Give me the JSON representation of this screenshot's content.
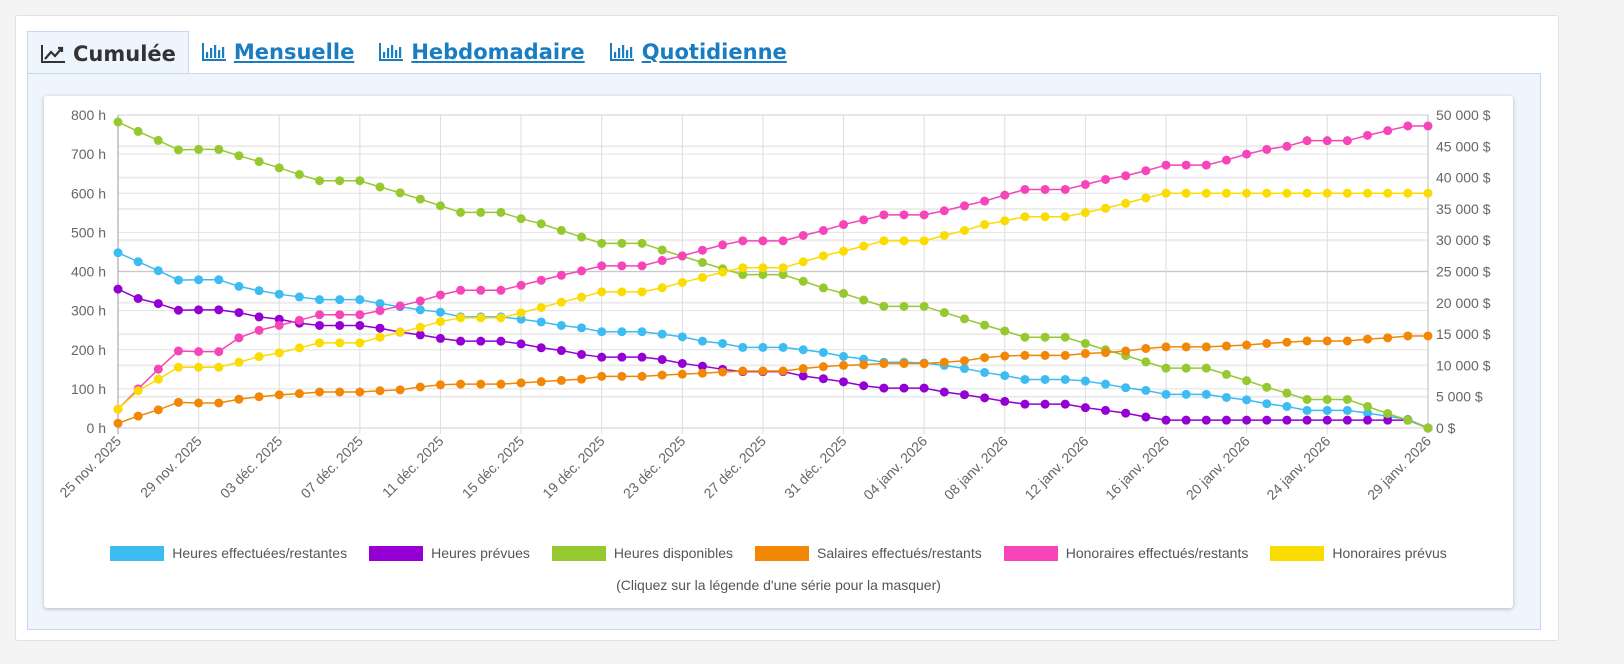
{
  "tabs": [
    {
      "label": "Cumulée",
      "icon": "line-chart-icon",
      "active": true
    },
    {
      "label": "Mensuelle",
      "icon": "bar-chart-icon",
      "active": false
    },
    {
      "label": "Hebdomadaire",
      "icon": "bar-chart-icon",
      "active": false
    },
    {
      "label": "Quotidienne",
      "icon": "bar-chart-icon",
      "active": false
    }
  ],
  "legend_hint": "(Cliquez sur la légende d'une série pour la masquer)",
  "chart_data": {
    "type": "line",
    "grid": true,
    "legend_placement": "bottom",
    "y_left": {
      "range": [
        0,
        800
      ],
      "ticks": [
        "0 h",
        "100 h",
        "200 h",
        "300 h",
        "400 h",
        "500 h",
        "600 h",
        "700 h",
        "800 h"
      ]
    },
    "y_right": {
      "range": [
        0,
        50000
      ],
      "ticks": [
        "0 $",
        "5 000 $",
        "10 000 $",
        "15 000 $",
        "20 000 $",
        "25 000 $",
        "30 000 $",
        "35 000 $",
        "40 000 $",
        "45 000 $",
        "50 000 $"
      ]
    },
    "x_tick_labels": [
      "25 nov. 2025",
      "29 nov. 2025",
      "03 déc. 2025",
      "07 déc. 2025",
      "11 déc. 2025",
      "15 déc. 2025",
      "19 déc. 2025",
      "23 déc. 2025",
      "27 déc. 2025",
      "31 déc. 2025",
      "04 janv. 2026",
      "08 janv. 2026",
      "12 janv. 2026",
      "16 janv. 2026",
      "20 janv. 2026",
      "24 janv. 2026",
      "29 janv. 2026"
    ],
    "x": [
      "25 nov. 2025",
      "26 nov. 2025",
      "27 nov. 2025",
      "28 nov. 2025",
      "29 nov. 2025",
      "30 nov. 2025",
      "01 déc. 2025",
      "02 déc. 2025",
      "03 déc. 2025",
      "04 déc. 2025",
      "05 déc. 2025",
      "06 déc. 2025",
      "07 déc. 2025",
      "08 déc. 2025",
      "09 déc. 2025",
      "10 déc. 2025",
      "11 déc. 2025",
      "12 déc. 2025",
      "13 déc. 2025",
      "14 déc. 2025",
      "15 déc. 2025",
      "16 déc. 2025",
      "17 déc. 2025",
      "18 déc. 2025",
      "19 déc. 2025",
      "20 déc. 2025",
      "21 déc. 2025",
      "22 déc. 2025",
      "23 déc. 2025",
      "24 déc. 2025",
      "25 déc. 2025",
      "26 déc. 2025",
      "27 déc. 2025",
      "28 déc. 2025",
      "29 déc. 2025",
      "30 déc. 2025",
      "31 déc. 2025",
      "01 janv. 2026",
      "02 janv. 2026",
      "03 janv. 2026",
      "04 janv. 2026",
      "05 janv. 2026",
      "06 janv. 2026",
      "07 janv. 2026",
      "08 janv. 2026",
      "09 janv. 2026",
      "10 janv. 2026",
      "11 janv. 2026",
      "12 janv. 2026",
      "13 janv. 2026",
      "14 janv. 2026",
      "15 janv. 2026",
      "16 janv. 2026",
      "17 janv. 2026",
      "18 janv. 2026",
      "19 janv. 2026",
      "20 janv. 2026",
      "21 janv. 2026",
      "22 janv. 2026",
      "23 janv. 2026",
      "24 janv. 2026",
      "25 janv. 2026",
      "26 janv. 2026",
      "27 janv. 2026",
      "28 janv. 2026",
      "29 janv. 2026"
    ],
    "series": [
      {
        "name": "Heures effectuées/restantes",
        "color": "#3dbcf2",
        "axis": "left",
        "values": [
          448,
          425,
          402,
          378,
          379,
          379,
          362,
          351,
          342,
          335,
          328,
          328,
          328,
          318,
          310,
          302,
          296,
          284,
          284,
          284,
          278,
          271,
          262,
          256,
          246,
          246,
          246,
          240,
          233,
          222,
          216,
          206,
          206,
          206,
          200,
          193,
          183,
          176,
          168,
          168,
          166,
          160,
          152,
          142,
          134,
          124,
          124,
          124,
          120,
          112,
          103,
          96,
          86,
          86,
          86,
          78,
          72,
          62,
          55,
          45,
          45,
          45,
          38,
          30,
          22,
          0
        ]
      },
      {
        "name": "Heures prévues",
        "color": "#9400d3",
        "axis": "left",
        "values": [
          355,
          331,
          318,
          301,
          302,
          302,
          295,
          284,
          278,
          268,
          262,
          262,
          262,
          255,
          245,
          238,
          229,
          222,
          222,
          222,
          215,
          205,
          198,
          188,
          181,
          181,
          181,
          175,
          165,
          158,
          150,
          144,
          144,
          144,
          133,
          126,
          118,
          108,
          102,
          102,
          102,
          92,
          85,
          77,
          68,
          61,
          61,
          61,
          52,
          45,
          38,
          28,
          20,
          20,
          20,
          20,
          20,
          20,
          20,
          20,
          20,
          20,
          20,
          20,
          20,
          0
        ]
      },
      {
        "name": "Heures disponibles",
        "color": "#96c930",
        "axis": "left",
        "values": [
          782,
          758,
          735,
          711,
          712,
          712,
          696,
          681,
          665,
          648,
          632,
          632,
          632,
          616,
          601,
          585,
          568,
          551,
          551,
          551,
          535,
          522,
          505,
          488,
          472,
          472,
          472,
          455,
          439,
          423,
          407,
          392,
          392,
          392,
          375,
          358,
          344,
          327,
          311,
          311,
          311,
          295,
          279,
          263,
          248,
          232,
          232,
          232,
          216,
          200,
          185,
          169,
          153,
          153,
          153,
          137,
          121,
          104,
          89,
          73,
          73,
          73,
          55,
          37,
          20,
          0
        ]
      },
      {
        "name": "Salaires effectués/restants",
        "color": "#f28705",
        "axis": "right",
        "values": [
          750,
          1900,
          2900,
          4100,
          4000,
          4000,
          4600,
          5000,
          5300,
          5500,
          5750,
          5750,
          5750,
          5950,
          6100,
          6550,
          6900,
          7000,
          7000,
          7000,
          7200,
          7400,
          7600,
          7800,
          8250,
          8250,
          8250,
          8450,
          8600,
          8750,
          8950,
          9100,
          9100,
          9100,
          9500,
          9800,
          10000,
          10100,
          10300,
          10300,
          10300,
          10500,
          10750,
          11250,
          11500,
          11600,
          11600,
          11600,
          11900,
          12050,
          12300,
          12700,
          12950,
          12950,
          12950,
          13100,
          13250,
          13500,
          13700,
          13900,
          13900,
          13900,
          14200,
          14400,
          14700,
          14700
        ]
      },
      {
        "name": "Honoraires effectués/restants",
        "color": "#f545b8",
        "axis": "right",
        "values": [
          3000,
          6250,
          9400,
          12300,
          12200,
          12200,
          14400,
          15600,
          16400,
          17200,
          18100,
          18100,
          18100,
          18750,
          19500,
          20300,
          21250,
          22000,
          22000,
          22000,
          22800,
          23600,
          24400,
          25100,
          25900,
          25900,
          25900,
          26750,
          27500,
          28400,
          29250,
          29900,
          29900,
          29900,
          30750,
          31550,
          32500,
          33250,
          34050,
          34050,
          34050,
          34700,
          35500,
          36250,
          37200,
          38100,
          38100,
          38100,
          38900,
          39700,
          40300,
          41100,
          42000,
          42000,
          42000,
          42800,
          43750,
          44500,
          45000,
          45900,
          45900,
          45900,
          46750,
          47500,
          48250,
          48250
        ]
      },
      {
        "name": "Honoraires prévus",
        "color": "#fbdc00",
        "axis": "right",
        "values": [
          3000,
          5950,
          7800,
          9700,
          9700,
          9700,
          10500,
          11400,
          12000,
          12800,
          13600,
          13600,
          13600,
          14500,
          15300,
          16100,
          17000,
          17600,
          17600,
          17600,
          18400,
          19250,
          20100,
          20900,
          21750,
          21750,
          21750,
          22400,
          23250,
          24050,
          24900,
          25600,
          25600,
          25600,
          26550,
          27500,
          28250,
          29050,
          29900,
          29900,
          29900,
          30750,
          31550,
          32500,
          33100,
          33750,
          33750,
          33750,
          34400,
          35100,
          35900,
          36750,
          37500,
          37500,
          37500,
          37500,
          37500,
          37500,
          37500,
          37500,
          37500,
          37500,
          37500,
          37500,
          37500,
          37500
        ]
      }
    ]
  }
}
